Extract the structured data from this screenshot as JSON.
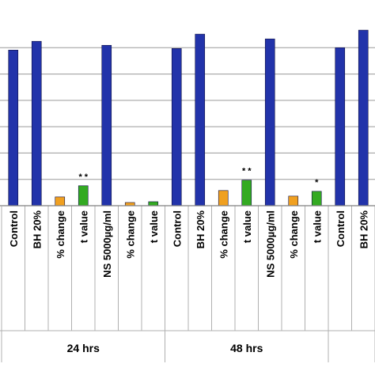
{
  "chart_data": {
    "type": "bar",
    "groups": [
      {
        "label": "24 hrs",
        "bars": [
          {
            "category": "Control",
            "value": 195,
            "color": "#2233aa"
          },
          {
            "category": "BH 20%",
            "value": 206,
            "color": "#2233aa"
          },
          {
            "category": "% change",
            "value": 11,
            "color": "#f0a020"
          },
          {
            "category": "t value",
            "value": 25,
            "color": "#33aa22",
            "annotation": "* *"
          },
          {
            "category": "NS 5000µg/ml",
            "value": 201,
            "color": "#2233aa"
          },
          {
            "category": "% change",
            "value": 4,
            "color": "#f0a020"
          },
          {
            "category": "t value",
            "value": 5,
            "color": "#33aa22"
          }
        ]
      },
      {
        "label": "48 hrs",
        "bars": [
          {
            "category": "Control",
            "value": 197,
            "color": "#2233aa"
          },
          {
            "category": "BH 20%",
            "value": 215,
            "color": "#2233aa"
          },
          {
            "category": "% change",
            "value": 19,
            "color": "#f0a020"
          },
          {
            "category": "t value",
            "value": 32,
            "color": "#33aa22",
            "annotation": "* *"
          },
          {
            "category": "NS 5000µg/ml",
            "value": 209,
            "color": "#2233aa"
          },
          {
            "category": "% change",
            "value": 12,
            "color": "#f0a020"
          },
          {
            "category": "t value",
            "value": 18,
            "color": "#33aa22",
            "annotation": "*"
          }
        ]
      },
      {
        "label": "",
        "bars": [
          {
            "category": "Control",
            "value": 198,
            "color": "#2233aa"
          },
          {
            "category": "BH 20%",
            "value": 220,
            "color": "#2233aa"
          }
        ]
      }
    ],
    "ylim": [
      0,
      230
    ],
    "gridlines": [
      0,
      33,
      66,
      99,
      132,
      165,
      198
    ],
    "grid": true,
    "title": "",
    "xlabel": "",
    "ylabel": ""
  }
}
